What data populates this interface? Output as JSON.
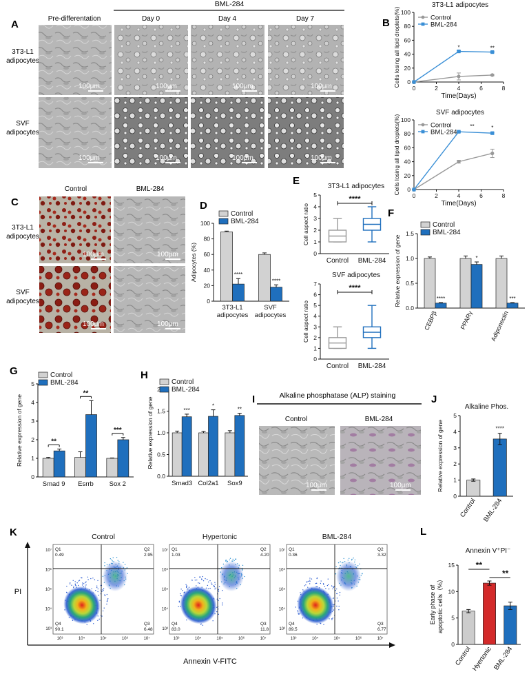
{
  "panels": {
    "A": {
      "letter": "A",
      "treatment": "BML-284",
      "columns": [
        "Pre-differentation",
        "Day 0",
        "Day 4",
        "Day 7"
      ],
      "rows": [
        [
          "3T3-L1",
          "adipocytes"
        ],
        [
          "SVF",
          "adipocytes"
        ]
      ],
      "scale_bar": "100μm"
    },
    "B": {
      "letter": "B",
      "charts": [
        {
          "type": "line",
          "title": "3T3-L1 adipocytes",
          "xlabel": "Time(Days)",
          "ylabel": "Cells losing all lipid droplets(%)",
          "xlim": [
            0,
            8
          ],
          "ylim": [
            0,
            100
          ],
          "xticks": [
            "0",
            "2",
            "4",
            "6",
            "8"
          ],
          "yticks": [
            "0",
            "20",
            "40",
            "60",
            "80",
            "100"
          ],
          "x": [
            0,
            4,
            7
          ],
          "series": [
            {
              "name": "Control",
              "color": "#999999",
              "values": [
                0,
                8,
                10
              ],
              "errors": [
                0,
                5,
                1
              ]
            },
            {
              "name": "BML-284",
              "color": "#3a8fd6",
              "values": [
                0,
                44,
                43
              ],
              "errors": [
                0,
                1,
                1
              ]
            }
          ],
          "annotations": [
            {
              "x": 4,
              "y": 47,
              "text": "*"
            },
            {
              "x": 7,
              "y": 46,
              "text": "**"
            }
          ]
        },
        {
          "type": "line",
          "title": "SVF adipocytes",
          "xlabel": "Time(Days)",
          "ylabel": "Cells losing all lipid droplets(%)",
          "xlim": [
            0,
            8
          ],
          "ylim": [
            0,
            100
          ],
          "xticks": [
            "0",
            "2",
            "4",
            "6",
            "8"
          ],
          "yticks": [
            "0",
            "20",
            "40",
            "60",
            "80",
            "100"
          ],
          "x": [
            0,
            4,
            7
          ],
          "series": [
            {
              "name": "Control",
              "color": "#999999",
              "values": [
                0,
                40,
                52
              ],
              "errors": [
                0,
                2,
                6
              ]
            },
            {
              "name": "BML-284",
              "color": "#3a8fd6",
              "values": [
                0,
                83,
                81
              ],
              "errors": [
                0,
                1,
                1
              ]
            }
          ],
          "annotations": [
            {
              "x": 5.2,
              "y": 88,
              "text": "**"
            },
            {
              "x": 7,
              "y": 86,
              "text": "*"
            }
          ]
        }
      ]
    },
    "C": {
      "letter": "C",
      "columns": [
        "Control",
        "BML-284"
      ],
      "rows": [
        [
          "3T3-L1",
          "adipocytes"
        ],
        [
          "SVF",
          "adipocytes"
        ]
      ],
      "scale_bar": "100μm"
    },
    "D": {
      "letter": "D",
      "chart": {
        "type": "bar",
        "ylabel": "Adipocytes (%)",
        "ylim": [
          0,
          100
        ],
        "yticks": [
          "0",
          "20",
          "40",
          "60",
          "80",
          "100"
        ],
        "categories": [
          [
            "3T3-L1",
            "adipocytes"
          ],
          [
            "SVF",
            "adipocytes"
          ]
        ],
        "series": [
          {
            "name": "Control",
            "color": "#d2d2d2",
            "values": [
              89,
              60
            ],
            "errors": [
              1,
              2
            ]
          },
          {
            "name": "BML-284",
            "color": "#1f6fbd",
            "values": [
              22,
              18
            ],
            "errors": [
              7,
              3
            ]
          }
        ],
        "stars": [
          "****",
          "****"
        ]
      }
    },
    "E": {
      "letter": "E",
      "charts": [
        {
          "type": "box",
          "title": "3T3-L1 adipocytes",
          "ylabel": "Cell aspect ratio",
          "ylim": [
            0,
            5
          ],
          "yticks": [
            "0",
            "1",
            "2",
            "3",
            "4",
            "5"
          ],
          "categories": [
            "Control",
            "BML-284"
          ],
          "boxes": [
            {
              "min": 1,
              "q1": 1,
              "median": 1.5,
              "q3": 2,
              "max": 3,
              "color": "#999999"
            },
            {
              "min": 1,
              "q1": 2,
              "median": 2.5,
              "q3": 3,
              "max": 4,
              "color": "#1f6fbd"
            }
          ],
          "significance": "****"
        },
        {
          "type": "box",
          "title": "SVF adipocytes",
          "ylabel": "Cell aspect ratio",
          "ylim": [
            0,
            7
          ],
          "yticks": [
            "0",
            "1",
            "2",
            "3",
            "4",
            "5",
            "6",
            "7"
          ],
          "categories": [
            "Control",
            "BML-284"
          ],
          "boxes": [
            {
              "min": 1,
              "q1": 1,
              "median": 1.5,
              "q3": 2,
              "max": 3,
              "color": "#999999"
            },
            {
              "min": 1,
              "q1": 2,
              "median": 2.5,
              "q3": 3,
              "max": 5,
              "color": "#1f6fbd"
            }
          ],
          "significance": "****"
        }
      ]
    },
    "F": {
      "letter": "F",
      "chart": {
        "type": "bar",
        "ylabel": "Relative expression of gene",
        "ylim": [
          0,
          1.5
        ],
        "yticks": [
          "0.0",
          "0.5",
          "1.0",
          "1.5"
        ],
        "categories": [
          "CEBPβ",
          "PPARγ",
          "Adiponectin"
        ],
        "series": [
          {
            "name": "Control",
            "color": "#d2d2d2",
            "values": [
              1.0,
              1.0,
              1.0
            ],
            "errors": [
              0.03,
              0.05,
              0.05
            ]
          },
          {
            "name": "BML-284",
            "color": "#1f6fbd",
            "values": [
              0.1,
              0.88,
              0.1
            ],
            "errors": [
              0.01,
              0.05,
              0.01
            ]
          }
        ],
        "stars": [
          "****",
          "*",
          "***"
        ]
      }
    },
    "G": {
      "letter": "G",
      "chart": {
        "type": "bar",
        "ylabel": "Relative expression of gene",
        "ylim": [
          0,
          5
        ],
        "yticks": [
          "0",
          "1",
          "2",
          "3",
          "4",
          "5"
        ],
        "categories": [
          "Smad 9",
          "Esrrb",
          "Sox 2"
        ],
        "series": [
          {
            "name": "Control",
            "color": "#d2d2d2",
            "values": [
              1.0,
              1.05,
              1.0
            ],
            "errors": [
              0.05,
              0.3,
              0.02
            ]
          },
          {
            "name": "BML-284",
            "color": "#1f6fbd",
            "values": [
              1.4,
              3.35,
              2.0
            ],
            "errors": [
              0.1,
              0.75,
              0.12
            ]
          }
        ],
        "stars": [
          "**",
          "**",
          "***"
        ]
      }
    },
    "H": {
      "letter": "H",
      "chart": {
        "type": "bar",
        "ylabel": "Relative expression of gene",
        "ylim": [
          0,
          2.0
        ],
        "yticks": [
          "0.0",
          "0.5",
          "1.0",
          "1.5",
          "2.0"
        ],
        "categories": [
          "Smad3",
          "Col2a1",
          "Sox9"
        ],
        "series": [
          {
            "name": "Control",
            "color": "#d2d2d2",
            "values": [
              1.0,
              1.0,
              1.0
            ],
            "errors": [
              0.04,
              0.03,
              0.05
            ]
          },
          {
            "name": "BML-284",
            "color": "#1f6fbd",
            "values": [
              1.37,
              1.38,
              1.4
            ],
            "errors": [
              0.06,
              0.15,
              0.05
            ]
          }
        ],
        "stars": [
          "***",
          "*",
          "**"
        ]
      }
    },
    "I": {
      "letter": "I",
      "title": "Alkaline phosphatase (ALP) staining",
      "columns": [
        "Control",
        "BML-284"
      ],
      "scale_bar": "100μm"
    },
    "J": {
      "letter": "J",
      "chart": {
        "type": "bar",
        "title": "Alkaline Phos.",
        "ylabel": "Relative expression of gene",
        "ylim": [
          0,
          5
        ],
        "yticks": [
          "0",
          "1",
          "2",
          "3",
          "4",
          "5"
        ],
        "categories": [
          "Control",
          "BML-284"
        ],
        "values": [
          1.0,
          3.55
        ],
        "errors": [
          0.07,
          0.35
        ],
        "colors": [
          "#d2d2d2",
          "#1f6fbd"
        ],
        "stars": [
          "",
          "****"
        ]
      }
    },
    "K": {
      "letter": "K",
      "xlabel": "Annexin V-FITC",
      "ylabel": "PI",
      "yticks": [
        "10⁷",
        "10⁶",
        "10⁵",
        "10⁴",
        "10³"
      ],
      "xticks": [
        "10³",
        "10⁴",
        "10⁵",
        "10⁶",
        "10⁷"
      ],
      "plots": [
        {
          "title": "Control",
          "q1": [
            "Q1",
            "0.49"
          ],
          "q2": [
            "Q2",
            "2.95"
          ],
          "q3": [
            "Q3",
            "6.48"
          ],
          "q4": [
            "Q4",
            "90.1"
          ]
        },
        {
          "title": "Hypertonic",
          "q1": [
            "Q1",
            "1.03"
          ],
          "q2": [
            "Q2",
            "4.20"
          ],
          "q3": [
            "Q3",
            "11.8"
          ],
          "q4": [
            "Q4",
            "83.0"
          ]
        },
        {
          "title": "BML-284",
          "q1": [
            "Q1",
            "0.36"
          ],
          "q2": [
            "Q2",
            "3.32"
          ],
          "q3": [
            "Q3",
            "6.77"
          ],
          "q4": [
            "Q4",
            "89.5"
          ]
        }
      ]
    },
    "L": {
      "letter": "L",
      "chart": {
        "type": "bar",
        "title": "Annexin V⁺PI⁻",
        "ylabel": [
          "Early phase of",
          "apoptotic cells（%）"
        ],
        "ylim": [
          0,
          15
        ],
        "yticks": [
          "0",
          "5",
          "10",
          "15"
        ],
        "categories": [
          "Control",
          "Hyertonic",
          "BML-284"
        ],
        "values": [
          6.3,
          11.6,
          7.3
        ],
        "errors": [
          0.3,
          0.4,
          0.7
        ],
        "colors": [
          "#cccccc",
          "#d32a2a",
          "#1f6fbd"
        ],
        "comparisons": [
          {
            "from": 0,
            "to": 1,
            "text": "**"
          },
          {
            "from": 1,
            "to": 2,
            "text": "**"
          }
        ]
      }
    }
  }
}
